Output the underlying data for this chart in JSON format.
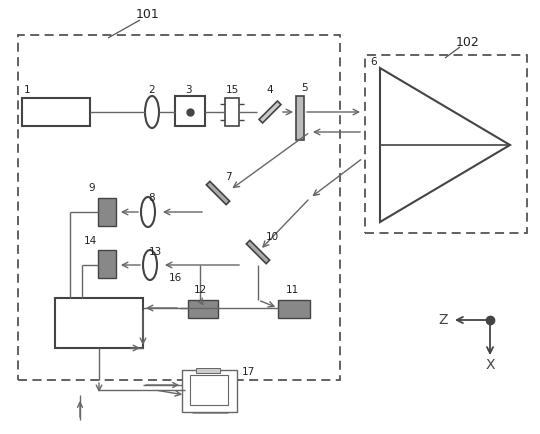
{
  "fig_width": 5.4,
  "fig_height": 4.34,
  "dpi": 100,
  "bg_color": "#ffffff"
}
